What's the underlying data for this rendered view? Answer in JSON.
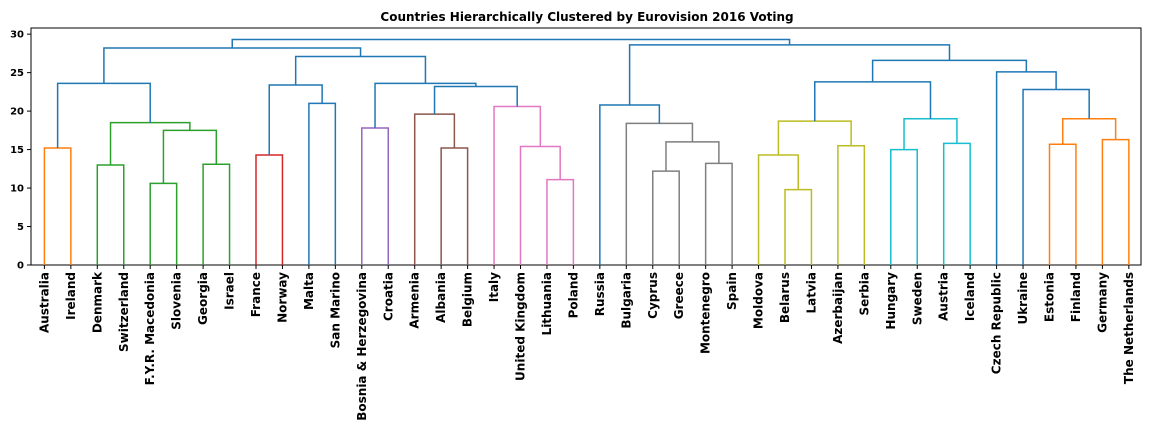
{
  "chart_data": {
    "type": "dendrogram",
    "title": "Countries Hierarchically Clustered by Eurovision 2016 Voting",
    "xlabel": "",
    "ylabel": "",
    "ylim": [
      0,
      30.8
    ],
    "yticks": [
      0,
      5,
      10,
      15,
      20,
      25,
      30
    ],
    "grid": false,
    "leaves": [
      "Australia",
      "Ireland",
      "Denmark",
      "Switzerland",
      "F.Y.R. Macedonia",
      "Slovenia",
      "Georgia",
      "Israel",
      "France",
      "Norway",
      "Malta",
      "San Marino",
      "Bosnia & Herzegovina",
      "Croatia",
      "Armenia",
      "Albania",
      "Belgium",
      "Italy",
      "United Kingdom",
      "Lithuania",
      "Poland",
      "Russia",
      "Bulgaria",
      "Cyprus",
      "Greece",
      "Montenegro",
      "Spain",
      "Moldova",
      "Belarus",
      "Latvia",
      "Azerbaijan",
      "Serbia",
      "Hungary",
      "Sweden",
      "Austria",
      "Iceland",
      "Czech Republic",
      "Ukraine",
      "Estonia",
      "Finland",
      "Germany",
      "The Netherlands"
    ],
    "merges": [
      {
        "left": "L0",
        "right": "L1",
        "height": 15.2,
        "color": "#ff7f0e"
      },
      {
        "left": "L2",
        "right": "L3",
        "height": 13.0,
        "color": "#2ca02c"
      },
      {
        "left": "L4",
        "right": "L5",
        "height": 10.6,
        "color": "#2ca02c"
      },
      {
        "left": "L6",
        "right": "L7",
        "height": 13.1,
        "color": "#2ca02c"
      },
      {
        "left": "M2",
        "right": "M3",
        "height": 17.5,
        "color": "#2ca02c"
      },
      {
        "left": "M1",
        "right": "M4",
        "height": 18.5,
        "color": "#2ca02c"
      },
      {
        "left": "M0",
        "right": "M5",
        "height": 23.6,
        "color": "#1f77b4"
      },
      {
        "left": "L8",
        "right": "L9",
        "height": 14.3,
        "color": "#d62728"
      },
      {
        "left": "L10",
        "right": "L11",
        "height": 21.0,
        "color": "#1f77b4"
      },
      {
        "left": "M7",
        "right": "M8",
        "height": 23.4,
        "color": "#1f77b4"
      },
      {
        "left": "L12",
        "right": "L13",
        "height": 17.8,
        "color": "#9467bd"
      },
      {
        "left": "L15",
        "right": "L16",
        "height": 15.2,
        "color": "#8c564b"
      },
      {
        "left": "L14",
        "right": "M11",
        "height": 19.6,
        "color": "#8c564b"
      },
      {
        "left": "L19",
        "right": "L20",
        "height": 11.1,
        "color": "#e377c2"
      },
      {
        "left": "L18",
        "right": "M13",
        "height": 15.4,
        "color": "#e377c2"
      },
      {
        "left": "L17",
        "right": "M14",
        "height": 20.6,
        "color": "#e377c2"
      },
      {
        "left": "M12",
        "right": "M15",
        "height": 23.2,
        "color": "#1f77b4"
      },
      {
        "left": "M10",
        "right": "M16",
        "height": 23.6,
        "color": "#1f77b4"
      },
      {
        "left": "M9",
        "right": "M17",
        "height": 27.1,
        "color": "#1f77b4"
      },
      {
        "left": "M6",
        "right": "M18",
        "height": 28.2,
        "color": "#1f77b4"
      },
      {
        "left": "L23",
        "right": "L24",
        "height": 12.2,
        "color": "#7f7f7f"
      },
      {
        "left": "L25",
        "right": "L26",
        "height": 13.2,
        "color": "#7f7f7f"
      },
      {
        "left": "M20",
        "right": "M21",
        "height": 16.0,
        "color": "#7f7f7f"
      },
      {
        "left": "L22",
        "right": "M22",
        "height": 18.4,
        "color": "#7f7f7f"
      },
      {
        "left": "L21",
        "right": "M23",
        "height": 20.8,
        "color": "#1f77b4"
      },
      {
        "left": "L28",
        "right": "L29",
        "height": 9.8,
        "color": "#bcbd22"
      },
      {
        "left": "L27",
        "right": "M25",
        "height": 14.3,
        "color": "#bcbd22"
      },
      {
        "left": "L30",
        "right": "L31",
        "height": 15.5,
        "color": "#bcbd22"
      },
      {
        "left": "M26",
        "right": "M27",
        "height": 18.7,
        "color": "#bcbd22"
      },
      {
        "left": "L32",
        "right": "L33",
        "height": 15.0,
        "color": "#17becf"
      },
      {
        "left": "L34",
        "right": "L35",
        "height": 15.8,
        "color": "#17becf"
      },
      {
        "left": "M29",
        "right": "M30",
        "height": 19.0,
        "color": "#17becf"
      },
      {
        "left": "M28",
        "right": "M31",
        "height": 23.8,
        "color": "#1f77b4"
      },
      {
        "left": "L38",
        "right": "L39",
        "height": 15.7,
        "color": "#ff7f0e"
      },
      {
        "left": "L40",
        "right": "L41",
        "height": 16.3,
        "color": "#ff7f0e"
      },
      {
        "left": "M33",
        "right": "M34",
        "height": 19.0,
        "color": "#ff7f0e"
      },
      {
        "left": "L37",
        "right": "M35",
        "height": 22.8,
        "color": "#1f77b4"
      },
      {
        "left": "L36",
        "right": "M36",
        "height": 25.1,
        "color": "#1f77b4"
      },
      {
        "left": "M32",
        "right": "M37",
        "height": 26.6,
        "color": "#1f77b4"
      },
      {
        "left": "M24",
        "right": "M38",
        "height": 28.6,
        "color": "#1f77b4"
      },
      {
        "left": "M19",
        "right": "M39",
        "height": 29.3,
        "color": "#1f77b4"
      }
    ]
  }
}
